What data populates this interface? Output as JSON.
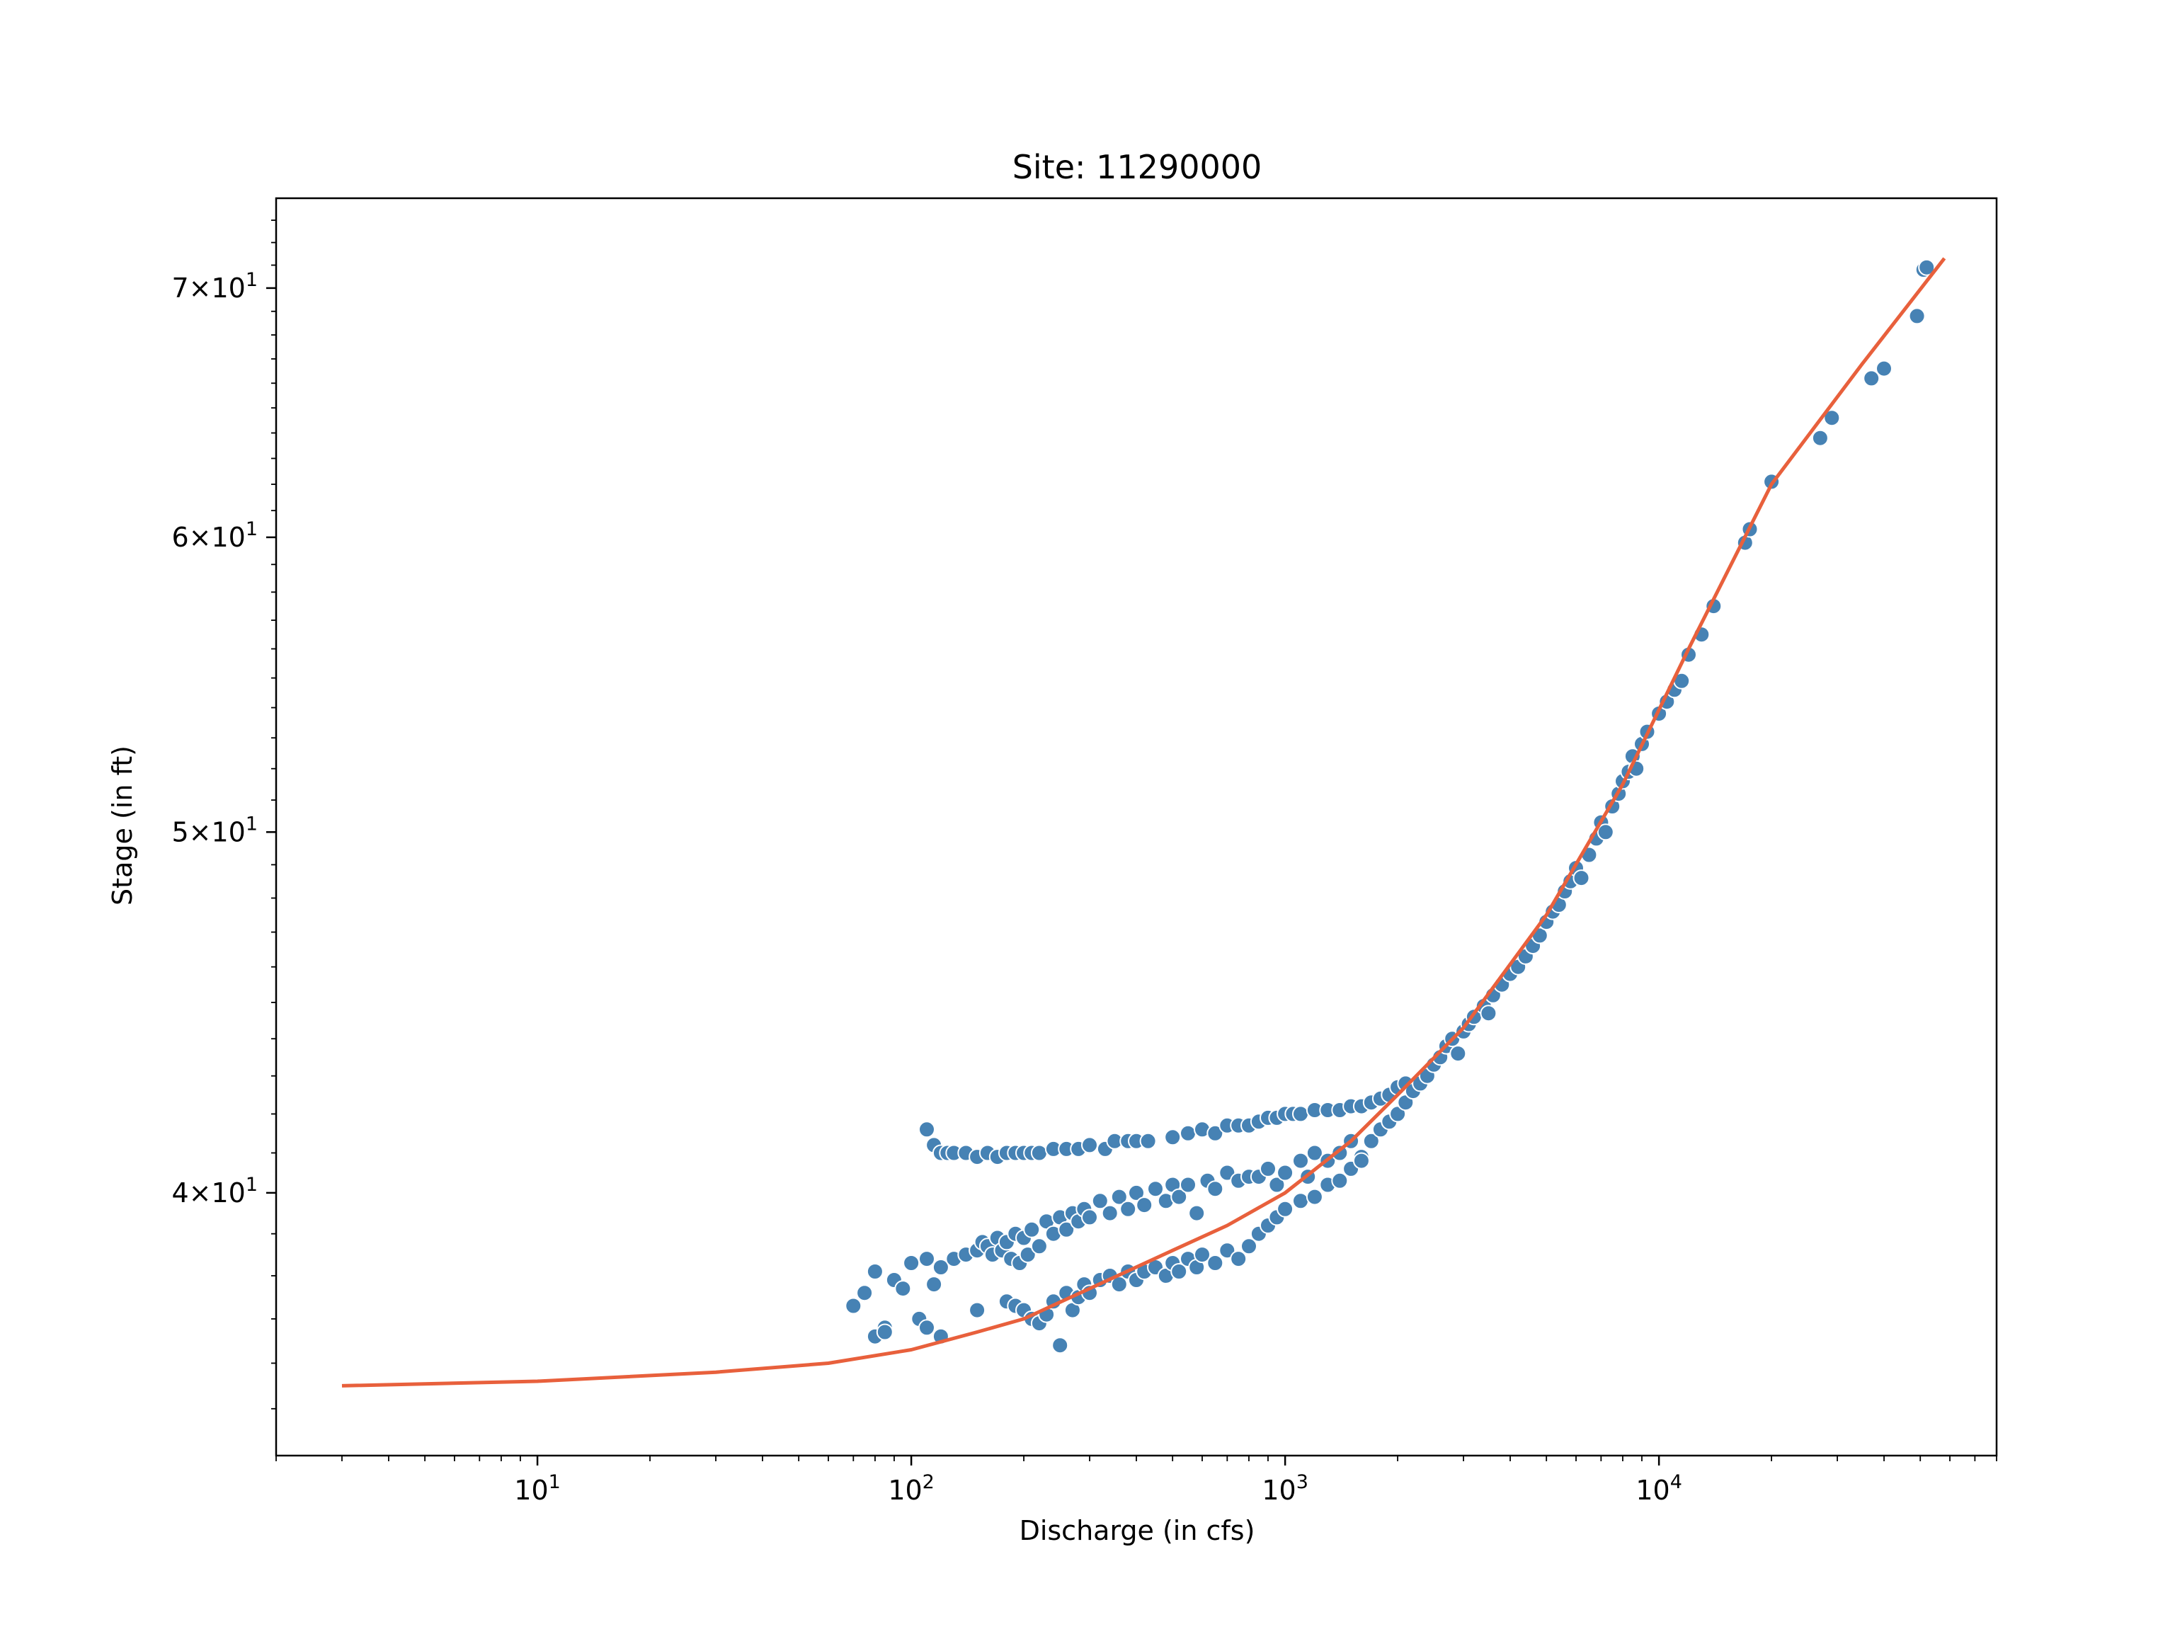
{
  "chart_data": {
    "type": "scatter",
    "title": "Site: 11290000",
    "xlabel": "Discharge (in cfs)",
    "ylabel": "Stage (in ft)",
    "xscale": "log",
    "yscale": "log",
    "xlim": [
      2,
      80000
    ],
    "ylim": [
      34,
      74
    ],
    "grid": false,
    "legend": "none",
    "colors": {
      "points": "#4682b4",
      "point_edge": "#ffffff",
      "curve": "#e8603c",
      "axes": "#000000"
    },
    "x_ticks": [
      {
        "value": 10,
        "base": "10",
        "exp": "1"
      },
      {
        "value": 100,
        "base": "10",
        "exp": "2"
      },
      {
        "value": 1000,
        "base": "10",
        "exp": "3"
      },
      {
        "value": 10000,
        "base": "10",
        "exp": "4"
      }
    ],
    "y_ticks": [
      {
        "value": 40,
        "mantissa": "4",
        "base": "10",
        "exp": "1"
      },
      {
        "value": 50,
        "mantissa": "5",
        "base": "10",
        "exp": "1"
      },
      {
        "value": 60,
        "mantissa": "6",
        "base": "10",
        "exp": "1"
      },
      {
        "value": 70,
        "mantissa": "7",
        "base": "10",
        "exp": "1"
      }
    ],
    "series": [
      {
        "kind": "observations",
        "points": [
          [
            110,
            41.6
          ],
          [
            115,
            41.2
          ],
          [
            120,
            41.0
          ],
          [
            125,
            41.0
          ],
          [
            130,
            41.0
          ],
          [
            140,
            41.0
          ],
          [
            150,
            40.9
          ],
          [
            160,
            41.0
          ],
          [
            170,
            40.9
          ],
          [
            180,
            41.0
          ],
          [
            190,
            41.0
          ],
          [
            200,
            41.0
          ],
          [
            210,
            41.0
          ],
          [
            220,
            41.0
          ],
          [
            240,
            41.1
          ],
          [
            260,
            41.1
          ],
          [
            280,
            41.1
          ],
          [
            300,
            41.2
          ],
          [
            330,
            41.1
          ],
          [
            350,
            41.3
          ],
          [
            380,
            41.3
          ],
          [
            400,
            41.3
          ],
          [
            430,
            41.3
          ],
          [
            500,
            41.4
          ],
          [
            550,
            41.5
          ],
          [
            600,
            41.6
          ],
          [
            650,
            41.5
          ],
          [
            700,
            41.7
          ],
          [
            750,
            41.7
          ],
          [
            800,
            41.7
          ],
          [
            850,
            41.8
          ],
          [
            900,
            41.9
          ],
          [
            950,
            41.9
          ],
          [
            1000,
            42.0
          ],
          [
            1050,
            42.0
          ],
          [
            1100,
            42.0
          ],
          [
            1200,
            42.1
          ],
          [
            1300,
            42.1
          ],
          [
            1400,
            42.1
          ],
          [
            1500,
            42.2
          ],
          [
            1600,
            42.2
          ],
          [
            1700,
            42.3
          ],
          [
            1800,
            42.4
          ],
          [
            1900,
            42.5
          ],
          [
            2000,
            42.7
          ],
          [
            2100,
            42.8
          ],
          [
            70,
            37.3
          ],
          [
            75,
            37.6
          ],
          [
            80,
            38.1
          ],
          [
            85,
            36.8
          ],
          [
            90,
            37.9
          ],
          [
            95,
            37.7
          ],
          [
            100,
            38.3
          ],
          [
            105,
            37.0
          ],
          [
            110,
            38.4
          ],
          [
            115,
            37.8
          ],
          [
            120,
            38.2
          ],
          [
            130,
            38.4
          ],
          [
            140,
            38.5
          ],
          [
            150,
            38.6
          ],
          [
            155,
            38.8
          ],
          [
            160,
            38.7
          ],
          [
            165,
            38.5
          ],
          [
            170,
            38.9
          ],
          [
            175,
            38.6
          ],
          [
            180,
            38.8
          ],
          [
            185,
            38.4
          ],
          [
            190,
            39.0
          ],
          [
            195,
            38.3
          ],
          [
            200,
            38.9
          ],
          [
            205,
            38.5
          ],
          [
            210,
            39.1
          ],
          [
            220,
            38.7
          ],
          [
            230,
            39.3
          ],
          [
            240,
            39.0
          ],
          [
            250,
            39.4
          ],
          [
            260,
            39.1
          ],
          [
            270,
            39.5
          ],
          [
            280,
            39.3
          ],
          [
            290,
            39.6
          ],
          [
            300,
            39.4
          ],
          [
            320,
            39.8
          ],
          [
            340,
            39.5
          ],
          [
            360,
            39.9
          ],
          [
            380,
            39.6
          ],
          [
            400,
            40.0
          ],
          [
            420,
            39.7
          ],
          [
            450,
            40.1
          ],
          [
            480,
            39.8
          ],
          [
            500,
            40.2
          ],
          [
            520,
            39.9
          ],
          [
            550,
            40.2
          ],
          [
            580,
            39.5
          ],
          [
            620,
            40.3
          ],
          [
            650,
            40.1
          ],
          [
            700,
            40.5
          ],
          [
            750,
            40.3
          ],
          [
            800,
            40.4
          ],
          [
            850,
            40.4
          ],
          [
            900,
            40.6
          ],
          [
            950,
            40.2
          ],
          [
            1000,
            40.5
          ],
          [
            1100,
            40.8
          ],
          [
            1150,
            40.4
          ],
          [
            1200,
            41.0
          ],
          [
            1300,
            40.8
          ],
          [
            1400,
            41.0
          ],
          [
            1500,
            41.3
          ],
          [
            1600,
            40.9
          ],
          [
            80,
            36.6
          ],
          [
            85,
            36.7
          ],
          [
            110,
            36.8
          ],
          [
            120,
            36.6
          ],
          [
            150,
            37.2
          ],
          [
            180,
            37.4
          ],
          [
            190,
            37.3
          ],
          [
            200,
            37.2
          ],
          [
            210,
            37.0
          ],
          [
            220,
            36.9
          ],
          [
            230,
            37.1
          ],
          [
            240,
            37.4
          ],
          [
            250,
            36.4
          ],
          [
            260,
            37.6
          ],
          [
            270,
            37.2
          ],
          [
            280,
            37.5
          ],
          [
            290,
            37.8
          ],
          [
            300,
            37.6
          ],
          [
            320,
            37.9
          ],
          [
            340,
            38.0
          ],
          [
            360,
            37.8
          ],
          [
            380,
            38.1
          ],
          [
            400,
            37.9
          ],
          [
            420,
            38.1
          ],
          [
            450,
            38.2
          ],
          [
            480,
            38.0
          ],
          [
            500,
            38.3
          ],
          [
            520,
            38.1
          ],
          [
            550,
            38.4
          ],
          [
            580,
            38.2
          ],
          [
            600,
            38.5
          ],
          [
            650,
            38.3
          ],
          [
            700,
            38.6
          ],
          [
            750,
            38.4
          ],
          [
            800,
            38.7
          ],
          [
            850,
            39.0
          ],
          [
            900,
            39.2
          ],
          [
            950,
            39.4
          ],
          [
            1000,
            39.6
          ],
          [
            1100,
            39.8
          ],
          [
            1200,
            39.9
          ],
          [
            1300,
            40.2
          ],
          [
            1400,
            40.3
          ],
          [
            1500,
            40.6
          ],
          [
            1600,
            40.8
          ],
          [
            1700,
            41.3
          ],
          [
            1800,
            41.6
          ],
          [
            1900,
            41.8
          ],
          [
            2000,
            42.0
          ],
          [
            2100,
            42.3
          ],
          [
            2200,
            42.6
          ],
          [
            2300,
            42.8
          ],
          [
            2400,
            43.0
          ],
          [
            2500,
            43.3
          ],
          [
            2600,
            43.5
          ],
          [
            2700,
            43.8
          ],
          [
            2800,
            44.0
          ],
          [
            2900,
            43.6
          ],
          [
            3000,
            44.2
          ],
          [
            3100,
            44.4
          ],
          [
            3200,
            44.6
          ],
          [
            3400,
            44.9
          ],
          [
            3500,
            44.7
          ],
          [
            3600,
            45.2
          ],
          [
            3800,
            45.5
          ],
          [
            4000,
            45.8
          ],
          [
            4200,
            46.0
          ],
          [
            4400,
            46.3
          ],
          [
            4600,
            46.6
          ],
          [
            4800,
            46.9
          ],
          [
            5000,
            47.3
          ],
          [
            5200,
            47.6
          ],
          [
            5400,
            47.8
          ],
          [
            5600,
            48.2
          ],
          [
            5800,
            48.5
          ],
          [
            6000,
            48.9
          ],
          [
            6200,
            48.6
          ],
          [
            6500,
            49.3
          ],
          [
            6800,
            49.8
          ],
          [
            7000,
            50.3
          ],
          [
            7200,
            50.0
          ],
          [
            7500,
            50.8
          ],
          [
            7800,
            51.2
          ],
          [
            8000,
            51.6
          ],
          [
            8300,
            51.9
          ],
          [
            8500,
            52.4
          ],
          [
            8700,
            52.0
          ],
          [
            9000,
            52.8
          ],
          [
            9300,
            53.2
          ],
          [
            10000,
            53.8
          ],
          [
            10500,
            54.2
          ],
          [
            11000,
            54.6
          ],
          [
            11500,
            54.9
          ],
          [
            12000,
            55.8
          ],
          [
            13000,
            56.5
          ],
          [
            14000,
            57.5
          ],
          [
            17000,
            59.8
          ],
          [
            17500,
            60.3
          ],
          [
            20000,
            62.1
          ],
          [
            27000,
            63.8
          ],
          [
            29000,
            64.6
          ],
          [
            37000,
            66.2
          ],
          [
            40000,
            66.6
          ],
          [
            49000,
            68.8
          ],
          [
            51000,
            70.8
          ],
          [
            52000,
            70.9
          ]
        ]
      },
      {
        "kind": "fitted_curve",
        "points": [
          [
            3,
            35.5
          ],
          [
            10,
            35.6
          ],
          [
            30,
            35.8
          ],
          [
            60,
            36.0
          ],
          [
            100,
            36.3
          ],
          [
            150,
            36.7
          ],
          [
            200,
            37.0
          ],
          [
            300,
            37.7
          ],
          [
            500,
            38.6
          ],
          [
            700,
            39.2
          ],
          [
            1000,
            40.0
          ],
          [
            1500,
            41.3
          ],
          [
            2000,
            42.5
          ],
          [
            3000,
            44.3
          ],
          [
            5000,
            47.5
          ],
          [
            8000,
            51.5
          ],
          [
            12000,
            56.0
          ],
          [
            20000,
            62.0
          ],
          [
            35000,
            66.8
          ],
          [
            58000,
            71.3
          ]
        ]
      }
    ]
  }
}
